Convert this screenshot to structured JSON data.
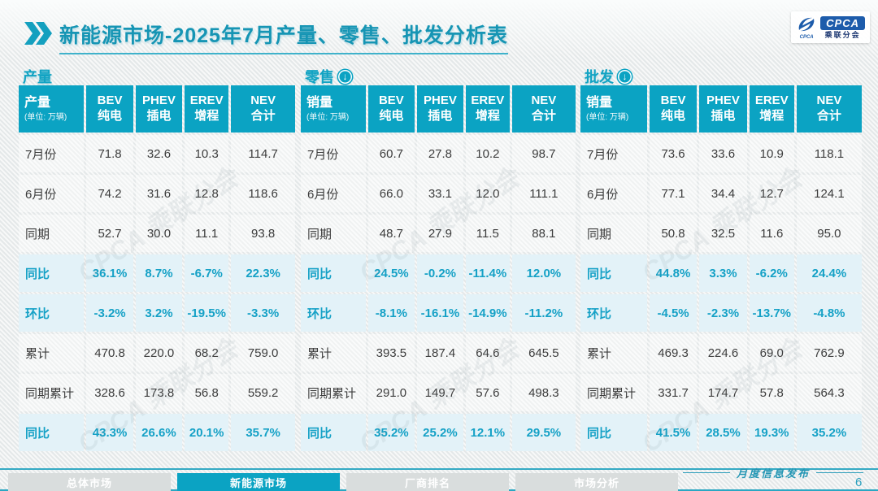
{
  "header": {
    "title_primary": "新能源市场",
    "title_rest": "-2025年7月产量、零售、批发分析表",
    "logo_abbr": "CPCA",
    "logo_sub": "乘联分会"
  },
  "watermark": "CPCA 乘联分会",
  "icons": {
    "down_arrow": "↓"
  },
  "colors": {
    "teal": "#0BA3C3",
    "title_teal": "#1695B4",
    "highlight_bg": "#E3F2F8",
    "logo_blue": "#1D5CAB",
    "tab_inactive": "#D9DDDD"
  },
  "tables": [
    {
      "section": "产量",
      "arrow_icon": false,
      "row_header": "产量",
      "unit": "(单位: 万辆)",
      "columns": [
        {
          "l1": "BEV",
          "l2": "纯电"
        },
        {
          "l1": "PHEV",
          "l2": "插电"
        },
        {
          "l1": "EREV",
          "l2": "增程"
        },
        {
          "l1": "NEV",
          "l2": "合计"
        }
      ],
      "rows": [
        {
          "label": "7月份",
          "values": [
            "71.8",
            "32.6",
            "10.3",
            "114.7"
          ],
          "highlight": false
        },
        {
          "label": "6月份",
          "values": [
            "74.2",
            "31.6",
            "12.8",
            "118.6"
          ],
          "highlight": false
        },
        {
          "label": "同期",
          "values": [
            "52.7",
            "30.0",
            "11.1",
            "93.8"
          ],
          "highlight": false
        },
        {
          "label": "同比",
          "values": [
            "36.1%",
            "8.7%",
            "-6.7%",
            "22.3%"
          ],
          "highlight": true
        },
        {
          "label": "环比",
          "values": [
            "-3.2%",
            "3.2%",
            "-19.5%",
            "-3.3%"
          ],
          "highlight": true
        },
        {
          "label": "累计",
          "values": [
            "470.8",
            "220.0",
            "68.2",
            "759.0"
          ],
          "highlight": false
        },
        {
          "label": "同期累计",
          "values": [
            "328.6",
            "173.8",
            "56.8",
            "559.2"
          ],
          "highlight": false
        },
        {
          "label": "同比",
          "values": [
            "43.3%",
            "26.6%",
            "20.1%",
            "35.7%"
          ],
          "highlight": true
        }
      ]
    },
    {
      "section": "零售",
      "arrow_icon": true,
      "row_header": "销量",
      "unit": "(单位: 万辆)",
      "columns": [
        {
          "l1": "BEV",
          "l2": "纯电"
        },
        {
          "l1": "PHEV",
          "l2": "插电"
        },
        {
          "l1": "EREV",
          "l2": "增程"
        },
        {
          "l1": "NEV",
          "l2": "合计"
        }
      ],
      "rows": [
        {
          "label": "7月份",
          "values": [
            "60.7",
            "27.8",
            "10.2",
            "98.7"
          ],
          "highlight": false
        },
        {
          "label": "6月份",
          "values": [
            "66.0",
            "33.1",
            "12.0",
            "111.1"
          ],
          "highlight": false
        },
        {
          "label": "同期",
          "values": [
            "48.7",
            "27.9",
            "11.5",
            "88.1"
          ],
          "highlight": false
        },
        {
          "label": "同比",
          "values": [
            "24.5%",
            "-0.2%",
            "-11.4%",
            "12.0%"
          ],
          "highlight": true
        },
        {
          "label": "环比",
          "values": [
            "-8.1%",
            "-16.1%",
            "-14.9%",
            "-11.2%"
          ],
          "highlight": true
        },
        {
          "label": "累计",
          "values": [
            "393.5",
            "187.4",
            "64.6",
            "645.5"
          ],
          "highlight": false
        },
        {
          "label": "同期累计",
          "values": [
            "291.0",
            "149.7",
            "57.6",
            "498.3"
          ],
          "highlight": false
        },
        {
          "label": "同比",
          "values": [
            "35.2%",
            "25.2%",
            "12.1%",
            "29.5%"
          ],
          "highlight": true
        }
      ]
    },
    {
      "section": "批发",
      "arrow_icon": true,
      "row_header": "销量",
      "unit": "(单位: 万辆)",
      "columns": [
        {
          "l1": "BEV",
          "l2": "纯电"
        },
        {
          "l1": "PHEV",
          "l2": "插电"
        },
        {
          "l1": "EREV",
          "l2": "增程"
        },
        {
          "l1": "NEV",
          "l2": "合计"
        }
      ],
      "rows": [
        {
          "label": "7月份",
          "values": [
            "73.6",
            "33.6",
            "10.9",
            "118.1"
          ],
          "highlight": false
        },
        {
          "label": "6月份",
          "values": [
            "77.1",
            "34.4",
            "12.7",
            "124.1"
          ],
          "highlight": false
        },
        {
          "label": "同期",
          "values": [
            "50.8",
            "32.5",
            "11.6",
            "95.0"
          ],
          "highlight": false
        },
        {
          "label": "同比",
          "values": [
            "44.8%",
            "3.3%",
            "-6.2%",
            "24.4%"
          ],
          "highlight": true
        },
        {
          "label": "环比",
          "values": [
            "-4.5%",
            "-2.3%",
            "-13.7%",
            "-4.8%"
          ],
          "highlight": true
        },
        {
          "label": "累计",
          "values": [
            "469.3",
            "224.6",
            "69.0",
            "762.9"
          ],
          "highlight": false
        },
        {
          "label": "同期累计",
          "values": [
            "331.7",
            "174.7",
            "57.8",
            "564.3"
          ],
          "highlight": false
        },
        {
          "label": "同比",
          "values": [
            "41.5%",
            "28.5%",
            "19.3%",
            "35.2%"
          ],
          "highlight": true
        }
      ]
    }
  ],
  "footer": {
    "tabs": [
      {
        "label": "总体市场",
        "active": false
      },
      {
        "label": "新能源市场",
        "active": true
      },
      {
        "label": "厂商排名",
        "active": false
      },
      {
        "label": "市场分析",
        "active": false
      }
    ],
    "publication": "月度信息发布",
    "page": "6"
  }
}
